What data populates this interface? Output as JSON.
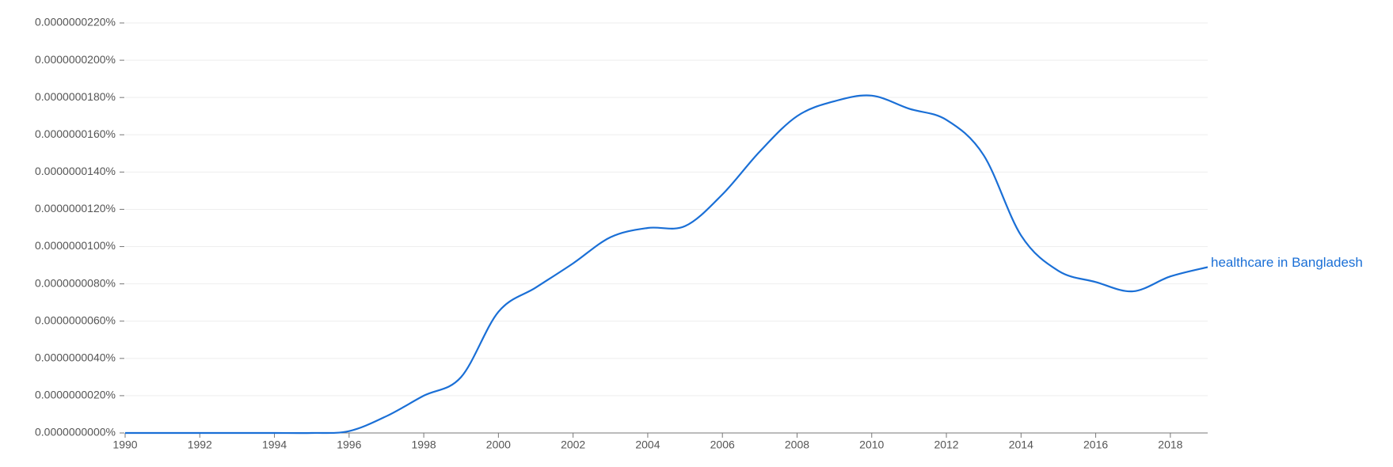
{
  "chart_data": {
    "type": "line",
    "x": [
      1990,
      1991,
      1992,
      1993,
      1994,
      1995,
      1996,
      1997,
      1998,
      1999,
      2000,
      2001,
      2002,
      2003,
      2004,
      2005,
      2006,
      2007,
      2008,
      2009,
      2010,
      2011,
      2012,
      2013,
      2014,
      2015,
      2016,
      2017,
      2018,
      2019
    ],
    "series": [
      {
        "name": "healthcare in Bangladesh",
        "color": "#1a6fd6",
        "values": [
          0,
          0,
          0,
          0,
          0,
          0,
          1e-10,
          9e-10,
          2e-09,
          3e-09,
          6.5e-09,
          7.8e-09,
          9.1e-09,
          1.05e-08,
          1.1e-08,
          1.11e-08,
          1.28e-08,
          1.51e-08,
          1.7e-08,
          1.78e-08,
          1.81e-08,
          1.74e-08,
          1.68e-08,
          1.49e-08,
          1.06e-08,
          8.7e-09,
          8.1e-09,
          7.6e-09,
          8.4e-09,
          8.9e-09
        ]
      }
    ],
    "xlim": [
      1990,
      2019
    ],
    "xticks": [
      1990,
      1992,
      1994,
      1996,
      1998,
      2000,
      2002,
      2004,
      2006,
      2008,
      2010,
      2012,
      2014,
      2016,
      2018
    ],
    "ylim": [
      0,
      2.2e-08
    ],
    "yticks": [
      {
        "value": 0,
        "label": "0.0000000000%"
      },
      {
        "value": 2e-09,
        "label": "0.0000000020%"
      },
      {
        "value": 4e-09,
        "label": "0.0000000040%"
      },
      {
        "value": 6e-09,
        "label": "0.0000000060%"
      },
      {
        "value": 8e-09,
        "label": "0.0000000080%"
      },
      {
        "value": 1e-08,
        "label": "0.0000000100%"
      },
      {
        "value": 1.2e-08,
        "label": "0.0000000120%"
      },
      {
        "value": 1.4e-08,
        "label": "0.0000000140%"
      },
      {
        "value": 1.6e-08,
        "label": "0.0000000160%"
      },
      {
        "value": 1.8e-08,
        "label": "0.0000000180%"
      },
      {
        "value": 2e-08,
        "label": "0.0000000200%"
      },
      {
        "value": 2.2e-08,
        "label": "0.0000000220%"
      }
    ],
    "grid": true
  }
}
